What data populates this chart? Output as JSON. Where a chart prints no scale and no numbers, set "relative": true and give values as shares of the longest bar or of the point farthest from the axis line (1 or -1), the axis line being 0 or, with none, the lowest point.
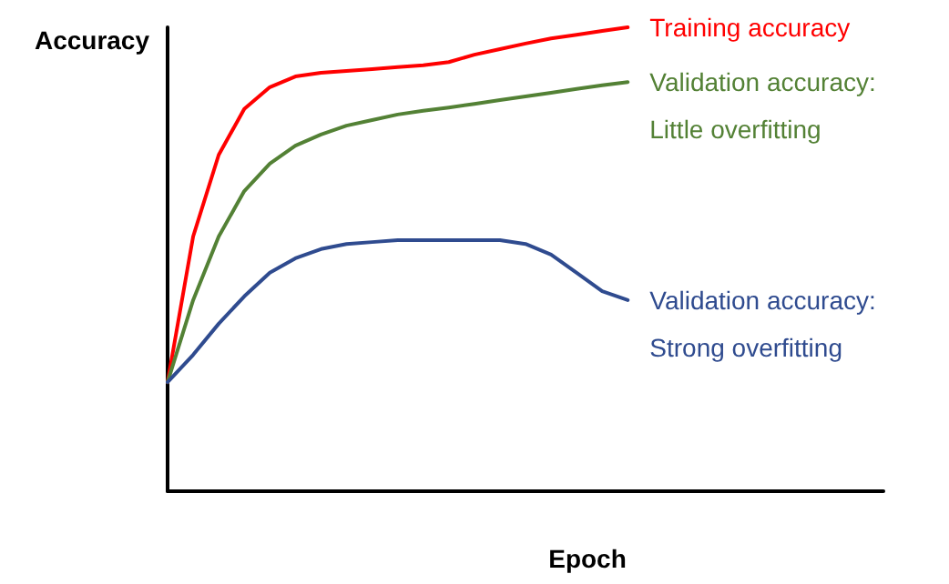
{
  "chart_data": {
    "type": "line",
    "relative": true,
    "xlabel": "Epoch",
    "ylabel": "Accuracy",
    "marker": "none",
    "line_style": "solid",
    "grid": false,
    "legend": false,
    "categories": [
      null,
      null,
      null,
      null,
      null,
      null,
      null,
      null,
      null,
      null,
      null,
      null,
      null,
      null,
      null,
      null,
      null,
      null,
      null,
      null,
      null,
      null,
      null,
      null,
      null,
      null,
      null,
      null,
      null
    ],
    "series": [
      {
        "name": "Training accuracy",
        "color": "#ff0000",
        "values": [
          0.235,
          0.549,
          0.725,
          0.824,
          0.871,
          0.894,
          0.902,
          0.906,
          0.91,
          0.914,
          0.918,
          0.925,
          0.941,
          0.953,
          0.965,
          0.976,
          0.984,
          0.992,
          1,
          null,
          null,
          null,
          null,
          null,
          null,
          null,
          null,
          null,
          null
        ]
      },
      {
        "name": "Validation accuracy:\nLittle overfitting",
        "color": "#538135",
        "values": [
          0.235,
          0.412,
          0.549,
          0.647,
          0.706,
          0.745,
          0.769,
          0.788,
          0.8,
          0.812,
          0.82,
          0.827,
          0.835,
          0.843,
          0.851,
          0.859,
          0.867,
          0.875,
          0.882,
          null,
          null,
          null,
          null,
          null,
          null,
          null,
          null,
          null,
          null
        ]
      },
      {
        "name": "Validation accuracy:\nStrong overfitting",
        "color": "#2f4b8f",
        "values": [
          0.235,
          0.294,
          0.361,
          0.42,
          0.471,
          0.502,
          0.522,
          0.533,
          0.537,
          0.541,
          0.541,
          0.541,
          0.541,
          0.541,
          0.533,
          0.51,
          0.471,
          0.431,
          0.412,
          null,
          null,
          null,
          null,
          null,
          null,
          null,
          null,
          null,
          null
        ]
      }
    ]
  }
}
